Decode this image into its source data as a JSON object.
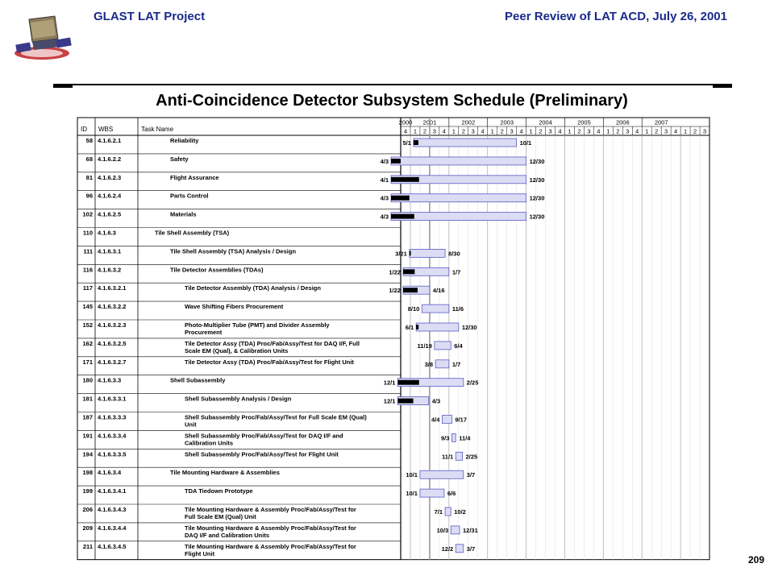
{
  "header": {
    "left_title": "GLAST LAT Project",
    "right_title": "Peer Review of LAT ACD, July 26, 2001"
  },
  "logo": {
    "icon": "glast-satellite-logo"
  },
  "slide_title": "Anti-Coincidence Detector Subsystem Schedule (Preliminary)",
  "page_number": "209",
  "colors": {
    "header_text": "#1a2a8a",
    "bar_fill": "#dcdcf4",
    "bar_stroke": "#5a5ac8",
    "progress": "#000000",
    "today_line": "#9a9a9a"
  },
  "gantt": {
    "columns": {
      "id": "ID",
      "wbs": "WBS",
      "task": "Task Name"
    },
    "years": [
      "2000",
      "2001",
      "2002",
      "2003",
      "2004",
      "2005",
      "2006",
      "2007"
    ],
    "quarters": [
      "4",
      "1",
      "2",
      "3",
      "4",
      "1",
      "2",
      "3",
      "4",
      "1",
      "2",
      "3",
      "4",
      "1",
      "2",
      "3",
      "4",
      "1",
      "2",
      "3",
      "4",
      "1",
      "2",
      "3",
      "4",
      "1",
      "2",
      "3",
      "4",
      "1",
      "2",
      "3"
    ],
    "status_date": "2001-07",
    "rows": [
      {
        "id": "58",
        "wbs": "4.1.6.2.1",
        "level": 2,
        "task": [
          "Reliability"
        ],
        "start": "5/1",
        "finish": "10/1",
        "start_q": 1.33,
        "finish_q": 12.0,
        "progress_q": 0.5
      },
      {
        "id": "68",
        "wbs": "4.1.6.2.2",
        "level": 2,
        "task": [
          "Safety"
        ],
        "start": "4/3",
        "finish": "12/30",
        "start_q": -1.0,
        "finish_q": 13.0,
        "progress_q": 1.0
      },
      {
        "id": "81",
        "wbs": "4.1.6.2.3",
        "level": 2,
        "task": [
          "Flight Assurance"
        ],
        "start": "4/1",
        "finish": "12/30",
        "start_q": -1.0,
        "finish_q": 13.0,
        "progress_q": 2.9
      },
      {
        "id": "96",
        "wbs": "4.1.6.2.4",
        "level": 2,
        "task": [
          "Parts Control"
        ],
        "start": "4/3",
        "finish": "12/30",
        "start_q": -1.0,
        "finish_q": 13.0,
        "progress_q": 1.9
      },
      {
        "id": "102",
        "wbs": "4.1.6.2.5",
        "level": 2,
        "task": [
          "Materials"
        ],
        "start": "4/3",
        "finish": "12/30",
        "start_q": -1.0,
        "finish_q": 13.0,
        "progress_q": 2.4
      },
      {
        "id": "110",
        "wbs": "4.1.6.3",
        "level": 1,
        "task": [
          "Tile Shell Assembly (TSA)"
        ],
        "start": "",
        "finish": "",
        "start_q": null,
        "finish_q": null,
        "progress_q": null
      },
      {
        "id": "111",
        "wbs": "4.1.6.3.1",
        "level": 2,
        "task": [
          "Tile Shell Assembly (TSA) Analysis / Design"
        ],
        "start": "3/21",
        "finish": "8/30",
        "start_q": 0.9,
        "finish_q": 4.6,
        "progress_q": 0.15
      },
      {
        "id": "116",
        "wbs": "4.1.6.3.2",
        "level": 2,
        "task": [
          "Tile Detector Assemblies (TDAs)"
        ],
        "start": "1/22",
        "finish": "1/7",
        "start_q": 0.25,
        "finish_q": 5.0,
        "progress_q": 1.2
      },
      {
        "id": "117",
        "wbs": "4.1.6.3.2.1",
        "level": 3,
        "task": [
          "Tile Detector Assembly (TDA) Analysis / Design"
        ],
        "start": "1/22",
        "finish": "4/16",
        "start_q": 0.25,
        "finish_q": 3.0,
        "progress_q": 1.5
      },
      {
        "id": "145",
        "wbs": "4.1.6.3.2.2",
        "level": 3,
        "task": [
          "Wave Shifting Fibers Procurement"
        ],
        "start": "8/10",
        "finish": "11/6",
        "start_q": 2.2,
        "finish_q": 5.0,
        "progress_q": null
      },
      {
        "id": "152",
        "wbs": "4.1.6.3.2.3",
        "level": 3,
        "task": [
          "Photo-Multiplier Tube (PMT) and Divider Assembly",
          "Procurement"
        ],
        "start": "6/1",
        "finish": "12/30",
        "start_q": 1.6,
        "finish_q": 6.0,
        "progress_q": 0.25
      },
      {
        "id": "162",
        "wbs": "4.1.6.3.2.5",
        "level": 3,
        "task": [
          "Tile Detector Assy (TDA) Proc/Fab/Assy/Test for DAQ I/F, Full",
          "Scale EM (Qual), & Calibration Units"
        ],
        "start": "11/19",
        "finish": "6/4",
        "start_q": 3.5,
        "finish_q": 5.2,
        "progress_q": null
      },
      {
        "id": "171",
        "wbs": "4.1.6.3.2.7",
        "level": 3,
        "task": [
          "Tile Detector Assy (TDA) Proc/Fab/Assy/Test for Flight Unit"
        ],
        "start": "3/8",
        "finish": "1/7",
        "start_q": 3.6,
        "finish_q": 5.0,
        "progress_q": null
      },
      {
        "id": "180",
        "wbs": "4.1.6.3.3",
        "level": 2,
        "task": [
          "Shell Subassembly"
        ],
        "start": "12/1",
        "finish": "2/25",
        "start_q": -0.3,
        "finish_q": 6.5,
        "progress_q": 2.2
      },
      {
        "id": "181",
        "wbs": "4.1.6.3.3.1",
        "level": 3,
        "task": [
          "Shell Subassembly Analysis / Design"
        ],
        "start": "12/1",
        "finish": "4/3",
        "start_q": -0.3,
        "finish_q": 2.9,
        "progress_q": 1.6
      },
      {
        "id": "187",
        "wbs": "4.1.6.3.3.3",
        "level": 3,
        "task": [
          "Shell Subassembly Proc/Fab/Assy/Test for Full Scale EM (Qual)",
          "Unit"
        ],
        "start": "4/4",
        "finish": "9/17",
        "start_q": 4.3,
        "finish_q": 5.3,
        "progress_q": null
      },
      {
        "id": "191",
        "wbs": "4.1.6.3.3.4",
        "level": 3,
        "task": [
          "Shell Subassembly Proc/Fab/Assy/Test for DAQ I/F and",
          "Calibration Units"
        ],
        "start": "9/3",
        "finish": "11/4",
        "start_q": 5.3,
        "finish_q": 5.7,
        "progress_q": null
      },
      {
        "id": "194",
        "wbs": "4.1.6.3.3.5",
        "level": 3,
        "task": [
          "Shell Subassembly Proc/Fab/Assy/Test for Flight Unit"
        ],
        "start": "11/1",
        "finish": "2/25",
        "start_q": 5.7,
        "finish_q": 6.4,
        "progress_q": null
      },
      {
        "id": "198",
        "wbs": "4.1.6.3.4",
        "level": 2,
        "task": [
          "Tile Mounting Hardware & Assemblies"
        ],
        "start": "10/1",
        "finish": "3/7",
        "start_q": 2.0,
        "finish_q": 6.5,
        "progress_q": null
      },
      {
        "id": "199",
        "wbs": "4.1.6.3.4.1",
        "level": 3,
        "task": [
          "TDA Tiedown Prototype"
        ],
        "start": "10/1",
        "finish": "6/6",
        "start_q": 2.0,
        "finish_q": 4.5,
        "progress_q": null
      },
      {
        "id": "206",
        "wbs": "4.1.6.3.4.3",
        "level": 3,
        "task": [
          "Tile Mounting Hardware & Assembly Proc/Fab/Assy/Test for",
          "Full Scale EM (Qual) Unit"
        ],
        "start": "7/1",
        "finish": "10/2",
        "start_q": 4.6,
        "finish_q": 5.2,
        "progress_q": null
      },
      {
        "id": "209",
        "wbs": "4.1.6.3.4.4",
        "level": 3,
        "task": [
          "Tile Mounting Hardware & Assembly Proc/Fab/Assy/Test for",
          "DAQ I/F and Calibration Units"
        ],
        "start": "10/3",
        "finish": "12/31",
        "start_q": 5.2,
        "finish_q": 6.1,
        "progress_q": null
      },
      {
        "id": "211",
        "wbs": "4.1.6.3.4.5",
        "level": 3,
        "task": [
          "Tile Mounting Hardware & Assembly Proc/Fab/Assy/Test for",
          "Flight Unit"
        ],
        "start": "12/2",
        "finish": "3/7",
        "start_q": 5.7,
        "finish_q": 6.5,
        "progress_q": null
      }
    ]
  }
}
